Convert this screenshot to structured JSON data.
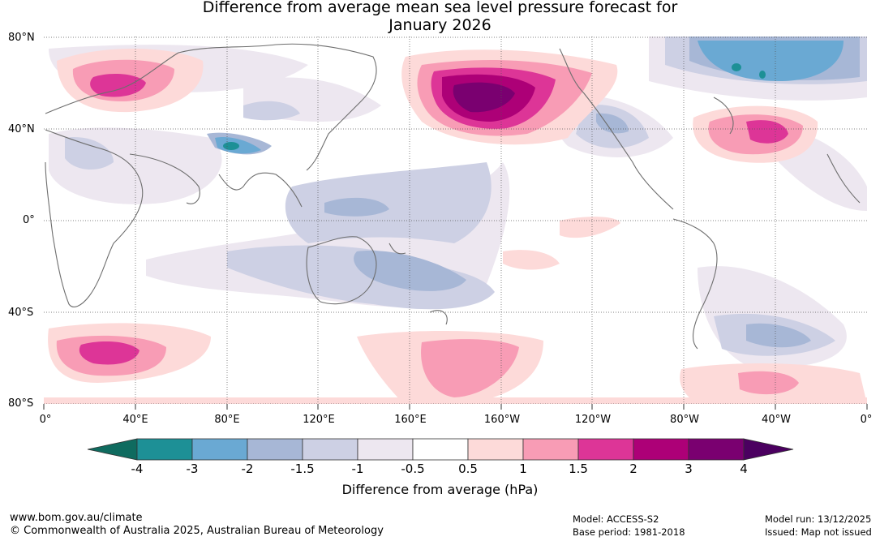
{
  "title": {
    "line1": "Difference from average mean sea level pressure forecast for",
    "line2": "January 2026"
  },
  "map": {
    "lat_labels": [
      "80°N",
      "40°N",
      "0°",
      "40°S",
      "80°S"
    ],
    "lon_labels": [
      "0°",
      "40°E",
      "80°E",
      "120°E",
      "160°E",
      "160°W",
      "120°W",
      "80°W",
      "40°W",
      "0°"
    ],
    "anomalies": [
      {
        "name": "north-pacific-high",
        "level": "4",
        "region": "Aleutians / Bering Sea"
      },
      {
        "name": "europe-high",
        "level": "2",
        "region": "Scandinavia"
      },
      {
        "name": "north-atlantic-high",
        "level": "2",
        "region": "Western North Atlantic"
      },
      {
        "name": "southern-indian-high",
        "level": "2",
        "region": "Southern Indian Ocean"
      },
      {
        "name": "south-pacific-high",
        "level": "1.5",
        "region": "Southern Pacific"
      },
      {
        "name": "south-atlantic-high",
        "level": "1.5",
        "region": "South Atlantic / Weddell"
      },
      {
        "name": "greenland-low",
        "level": "-3",
        "region": "Greenland / Arctic"
      },
      {
        "name": "tibet-low",
        "level": "-3",
        "region": "Tibetan Plateau"
      },
      {
        "name": "tropical-pacific-low",
        "level": "-1.5",
        "region": "Western Pacific / Australia"
      },
      {
        "name": "south-atlantic-low",
        "level": "-1.5",
        "region": "South Atlantic"
      }
    ]
  },
  "colorbar": {
    "ticks": [
      "-4",
      "-3",
      "-2",
      "-1.5",
      "-1",
      "-0.5",
      "0.5",
      "1",
      "1.5",
      "2",
      "3",
      "4"
    ],
    "colors": [
      "#0f6b5f",
      "#1d9096",
      "#6aa9d3",
      "#a7b7d6",
      "#cdd0e4",
      "#ede7f0",
      "#ffffff",
      "#fddad9",
      "#f89cb5",
      "#dd3597",
      "#ad0077",
      "#7a0070",
      "#4b0060"
    ],
    "label": "Difference from average (hPa)"
  },
  "footer": {
    "url": "www.bom.gov.au/climate",
    "copyright": "© Commonwealth of Australia 2025, Australian Bureau of Meteorology",
    "model": "Model: ACCESS-S2",
    "base_period": "Base period: 1981-2018",
    "model_run": "Model run: 13/12/2025",
    "issued": "Issued: Map not issued"
  }
}
